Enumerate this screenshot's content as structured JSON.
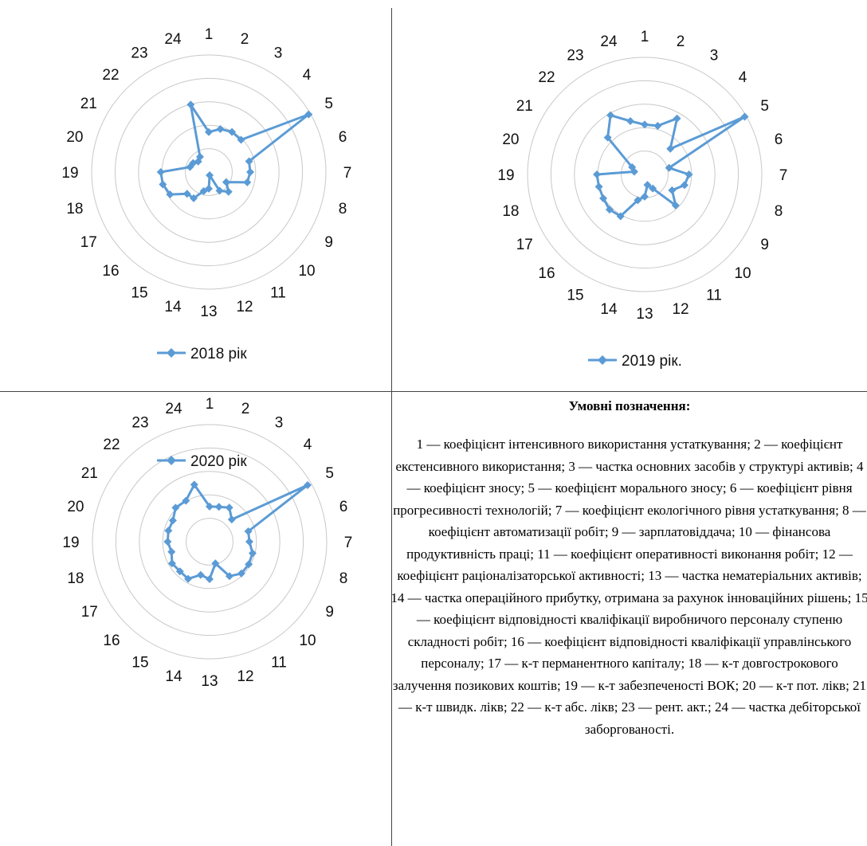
{
  "chart_data": [
    {
      "type": "radar",
      "categories": [
        "1",
        "2",
        "3",
        "4",
        "5",
        "6",
        "7",
        "8",
        "9",
        "10",
        "11",
        "12",
        "13",
        "14",
        "15",
        "16",
        "17",
        "18",
        "19",
        "20",
        "21",
        "22",
        "23",
        "24"
      ],
      "rlim": [
        0,
        5
      ],
      "grid": true,
      "legend_position": "bottom",
      "series": [
        {
          "name": "2018 рік",
          "values": [
            1.71,
            1.9,
            1.98,
            1.95,
            4.92,
            1.78,
            1.77,
            1.7,
            0.86,
            1.19,
            0.92,
            0.14,
            0.71,
            0.84,
            1.29,
            1.31,
            1.91,
            2.03,
            2.05,
            0.83,
            0.77,
            0.64,
            0.75,
            2.98
          ]
        }
      ]
    },
    {
      "type": "radar",
      "categories": [
        "1",
        "2",
        "3",
        "4",
        "5",
        "6",
        "7",
        "8",
        "9",
        "10",
        "11",
        "12",
        "13",
        "14",
        "15",
        "16",
        "17",
        "18",
        "19",
        "20",
        "21",
        "22",
        "23",
        "24"
      ],
      "rlim": [
        0,
        5
      ],
      "grid": true,
      "legend_position": "bottom",
      "series": [
        {
          "name": "2019 рік.",
          "values": [
            2.13,
            2.15,
            2.76,
            1.55,
            4.93,
            1.08,
            1.89,
            1.76,
            1.35,
            1.87,
            0.69,
            0.46,
            0.95,
            1.14,
            2.06,
            2.12,
            2.04,
            2.02,
            2.04,
            0.46,
            0.62,
            2.23,
            2.92,
            2.36
          ]
        }
      ]
    },
    {
      "type": "radar",
      "categories": [
        "1",
        "2",
        "3",
        "4",
        "5",
        "6",
        "7",
        "8",
        "9",
        "10",
        "11",
        "12",
        "13",
        "14",
        "15",
        "16",
        "17",
        "18",
        "19",
        "20",
        "21",
        "22",
        "23",
        "24"
      ],
      "rlim": [
        0,
        5
      ],
      "grid": true,
      "legend_position": "bottom",
      "series": [
        {
          "name": "2020 рік",
          "values": [
            1.5,
            1.54,
            1.68,
            1.34,
            4.83,
            1.71,
            1.7,
            1.9,
            1.93,
            1.92,
            1.7,
            0.96,
            1.6,
            1.47,
            1.83,
            1.79,
            1.85,
            1.68,
            1.79,
            1.82,
            1.81,
            2.05,
            2.02,
            2.52
          ]
        }
      ]
    }
  ],
  "notes": {
    "title": "Умовні позначення:",
    "text": "1 — коефіцієнт інтенсивного використання устаткування; 2 — коефіцієнт екстенсивного використання; 3 — частка основних засобів у структурі активів; 4 — коефіцієнт зносу; 5 — коефіцієнт морального зносу; 6 — коефіцієнт рівня прогресивності технологій; 7 — коефіцієнт екологічного рівня устаткування; 8 — коефіцієнт автоматизації робіт; 9 — зарплатовіддача; 10 — фінансова продуктивність праці; 11 — коефіцієнт оперативності виконання робіт; 12 — коефіцієнт раціоналізаторської активності; 13 — частка нематеріальних активів; 14 — частка операційного прибутку, отримана за рахунок інноваційних рішень; 15 — коефіцієнт відповідності кваліфікації виробничого персоналу ступеню складності робіт; 16 — коефіцієнт відповідності кваліфікації управлінського персоналу; 17 — к-т перманентного капіталу; 18 — к-т довгострокового залучення позикових коштів; 19 — к-т забезпеченості ВОК; 20 — к-т пот. лікв; 21 — к-т швидк. лікв; 22 — к-т абс. лікв; 23 — рент. акт.; 24 — частка дебіторської заборгованості."
  },
  "colors": {
    "series": "#5b9bd5",
    "grid": "#c8c8c8",
    "divider": "#444444"
  }
}
